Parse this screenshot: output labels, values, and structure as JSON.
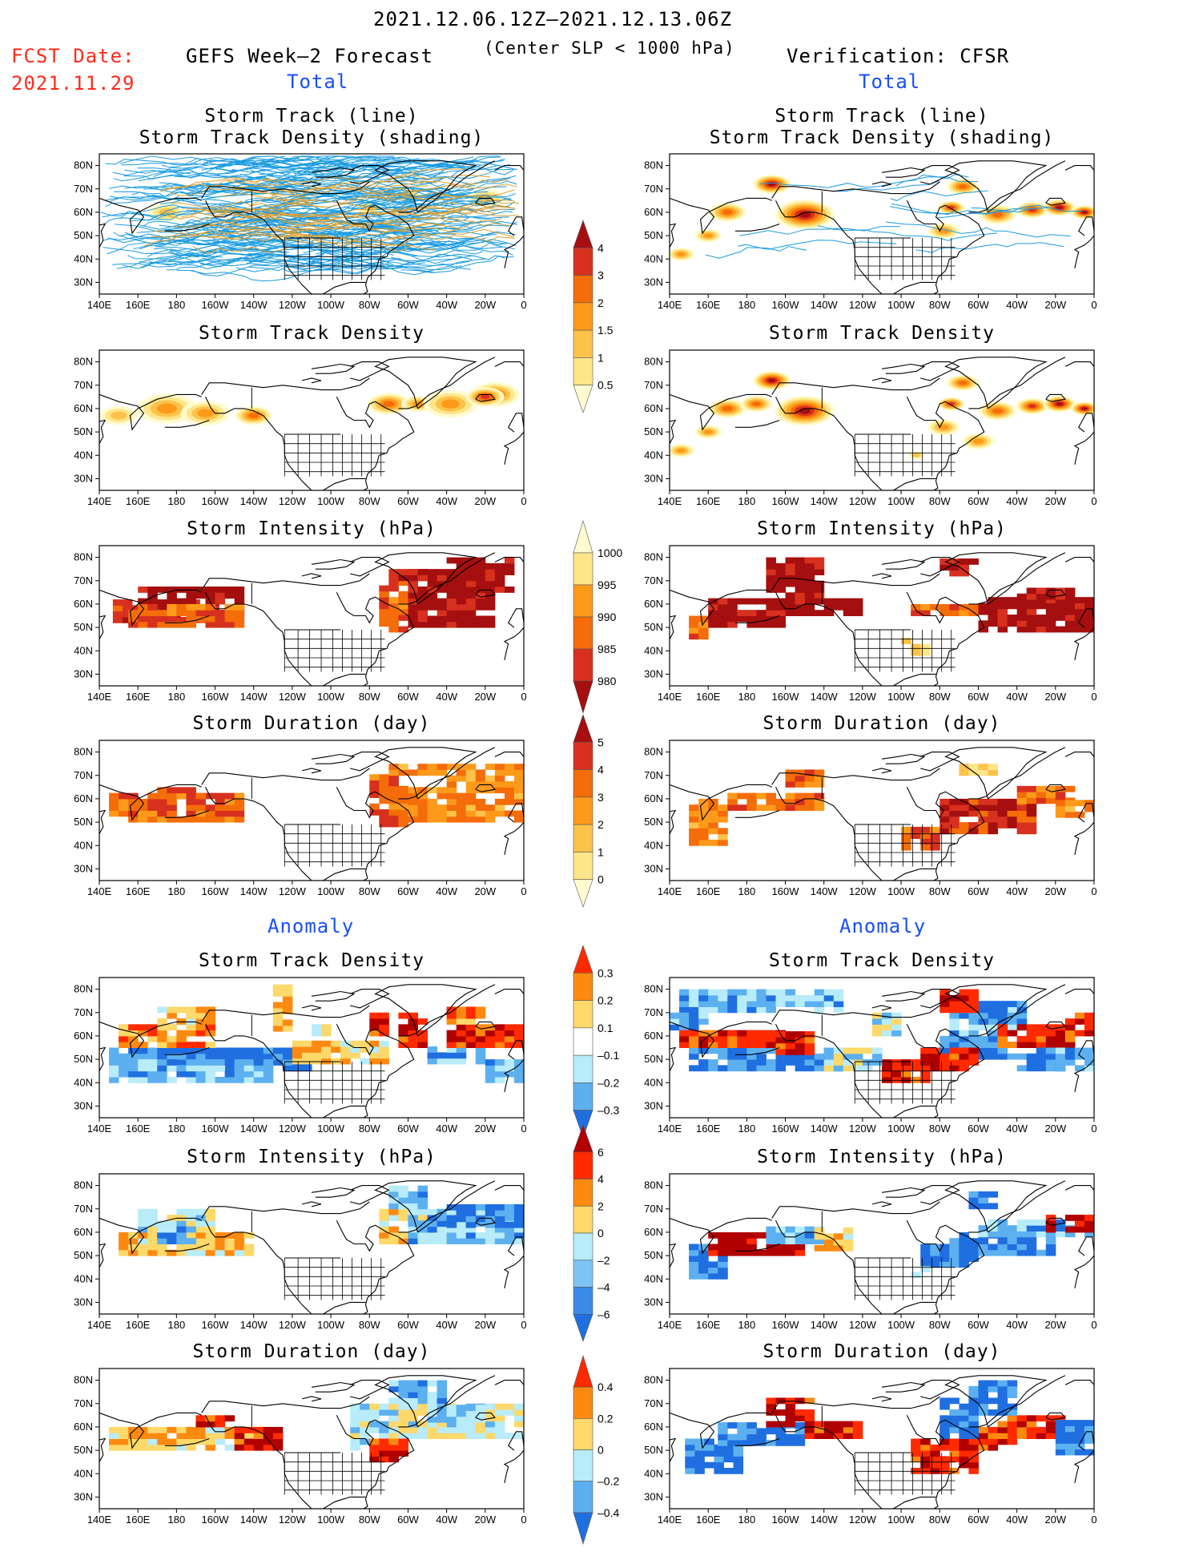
{
  "header": {
    "date_range": "2021.12.06.12Z–2021.12.13.06Z",
    "condition": "(Center SLP < 1000 hPa)",
    "fcst_label": "FCST Date:",
    "fcst_date": "2021.11.29",
    "left_title": "GEFS Week–2 Forecast",
    "right_title": "Verification: CFSR",
    "total_left": "Total",
    "total_right": "Total",
    "anomaly_left": "Anomaly",
    "anomaly_right": "Anomaly"
  },
  "axes": {
    "lon_labels": [
      "140E",
      "160E",
      "180",
      "160W",
      "140W",
      "120W",
      "100W",
      "80W",
      "60W",
      "40W",
      "20W",
      "0"
    ],
    "lat_labels": [
      "80N",
      "70N",
      "60N",
      "50N",
      "40N",
      "30N"
    ]
  },
  "panels": [
    {
      "id": "fc-track",
      "title_line1": "Storm Track (line)",
      "title_line2": "Storm Track Density (shading)",
      "kind": "tracks-fc"
    },
    {
      "id": "ob-track",
      "title_line1": "Storm Track (line)",
      "title_line2": "Storm Track Density (shading)",
      "kind": "tracks-ob"
    },
    {
      "id": "fc-density",
      "title_line1": "Storm Track Density",
      "title_line2": "",
      "kind": "density-fc"
    },
    {
      "id": "ob-density",
      "title_line1": "Storm Track Density",
      "title_line2": "",
      "kind": "density-ob"
    },
    {
      "id": "fc-intensity",
      "title_line1": "Storm Intensity (hPa)",
      "title_line2": "",
      "kind": "intensity-fc"
    },
    {
      "id": "ob-intensity",
      "title_line1": "Storm Intensity (hPa)",
      "title_line2": "",
      "kind": "intensity-ob"
    },
    {
      "id": "fc-duration",
      "title_line1": "Storm Duration (day)",
      "title_line2": "",
      "kind": "duration-fc"
    },
    {
      "id": "ob-duration",
      "title_line1": "Storm Duration (day)",
      "title_line2": "",
      "kind": "duration-ob"
    },
    {
      "id": "fc-anom-density",
      "title_line1": "Storm Track Density",
      "title_line2": "",
      "kind": "adensity-fc"
    },
    {
      "id": "ob-anom-density",
      "title_line1": "Storm Track Density",
      "title_line2": "",
      "kind": "adensity-ob"
    },
    {
      "id": "fc-anom-intensity",
      "title_line1": "Storm Intensity (hPa)",
      "title_line2": "",
      "kind": "aintensity-fc"
    },
    {
      "id": "ob-anom-intensity",
      "title_line1": "Storm Intensity (hPa)",
      "title_line2": "",
      "kind": "aintensity-ob"
    },
    {
      "id": "fc-anom-duration",
      "title_line1": "Storm Duration (day)",
      "title_line2": "",
      "kind": "aduration-fc"
    },
    {
      "id": "ob-anom-duration",
      "title_line1": "Storm Duration (day)",
      "title_line2": "",
      "kind": "aduration-ob"
    }
  ],
  "colorbars": [
    {
      "id": "cb-density",
      "labels": [
        "4",
        "3",
        "2",
        "1.5",
        "1",
        "0.5"
      ],
      "colors": [
        "#a50f0f",
        "#d7301f",
        "#f46d0a",
        "#fd9a1a",
        "#fdc24a",
        "#fde68a",
        "#fffbd0"
      ]
    },
    {
      "id": "cb-intensity",
      "labels": [
        "1000",
        "995",
        "990",
        "985",
        "980"
      ],
      "colors": [
        "#fffbd0",
        "#fde68a",
        "#fd9a1a",
        "#f46d0a",
        "#d7301f",
        "#a50f0f"
      ]
    },
    {
      "id": "cb-duration",
      "labels": [
        "5",
        "4",
        "3",
        "2",
        "1",
        "0"
      ],
      "colors": [
        "#a50f0f",
        "#d7301f",
        "#f46d0a",
        "#fd9a1a",
        "#fdc24a",
        "#fde68a",
        "#fffbd0"
      ]
    },
    {
      "id": "cb-adensity",
      "labels": [
        "0.3",
        "0.2",
        "0.1",
        "–0.1",
        "–0.2",
        "–0.3"
      ],
      "colors": [
        "#ff2a00",
        "#fd8a10",
        "#fdd86a",
        "#ffffff",
        "#b8ecfa",
        "#5cb0f0",
        "#1f6fe0"
      ]
    },
    {
      "id": "cb-aintensity",
      "labels": [
        "6",
        "4",
        "2",
        "0",
        "–2",
        "–4",
        "–6"
      ],
      "colors": [
        "#b00000",
        "#ff2a00",
        "#fd8a10",
        "#fdd86a",
        "#b8ecfa",
        "#7cc4f4",
        "#3a8ae8",
        "#1f6fe0"
      ]
    },
    {
      "id": "cb-aduration",
      "labels": [
        "0.4",
        "0.2",
        "0",
        "–0.2",
        "–0.4"
      ],
      "colors": [
        "#ff2a00",
        "#fd8a10",
        "#fdd86a",
        "#b8ecfa",
        "#5cb0f0",
        "#1f6fe0"
      ]
    }
  ]
}
